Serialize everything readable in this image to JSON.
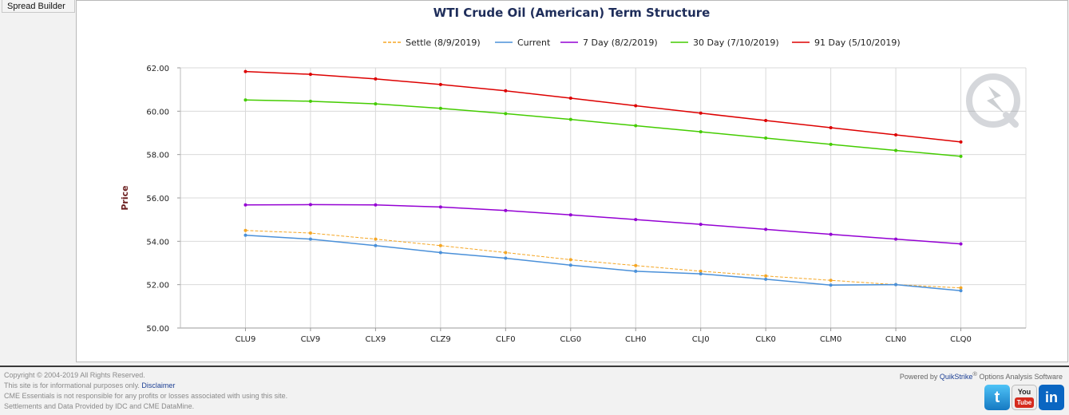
{
  "sidebar": {
    "spread_builder_label": "Spread Builder"
  },
  "chart_data": {
    "type": "line",
    "title": "WTI Crude Oil (American) Term Structure",
    "xlabel": "",
    "ylabel": "Price",
    "ylim": [
      50,
      62
    ],
    "yticks": [
      "50.00",
      "52.00",
      "54.00",
      "56.00",
      "58.00",
      "60.00",
      "62.00"
    ],
    "grid": true,
    "legend_position": "top",
    "categories": [
      "CLU9",
      "CLV9",
      "CLX9",
      "CLZ9",
      "CLF0",
      "CLG0",
      "CLH0",
      "CLJ0",
      "CLK0",
      "CLM0",
      "CLN0",
      "CLQ0"
    ],
    "series": [
      {
        "name": "Settle (8/9/2019)",
        "color": "#f5a623",
        "dashed": true,
        "values": [
          54.5,
          54.38,
          54.1,
          53.8,
          53.48,
          53.15,
          52.88,
          52.62,
          52.4,
          52.2,
          52.0,
          51.85
        ]
      },
      {
        "name": "Current",
        "color": "#4a90d9",
        "dashed": false,
        "values": [
          54.28,
          54.1,
          53.8,
          53.48,
          53.22,
          52.9,
          52.62,
          52.5,
          52.25,
          51.98,
          52.0,
          51.72
        ]
      },
      {
        "name": "7 Day (8/2/2019)",
        "color": "#9400d3",
        "dashed": false,
        "values": [
          55.68,
          55.69,
          55.68,
          55.58,
          55.42,
          55.22,
          55.0,
          54.78,
          54.55,
          54.32,
          54.1,
          53.88
        ]
      },
      {
        "name": "30 Day (7/10/2019)",
        "color": "#44cc00",
        "dashed": false,
        "values": [
          60.52,
          60.46,
          60.34,
          60.13,
          59.89,
          59.62,
          59.33,
          59.05,
          58.76,
          58.47,
          58.19,
          57.92
        ]
      },
      {
        "name": "91 Day (5/10/2019)",
        "color": "#dd0000",
        "dashed": false,
        "values": [
          61.83,
          61.7,
          61.49,
          61.23,
          60.94,
          60.6,
          60.25,
          59.91,
          59.57,
          59.24,
          58.91,
          58.58
        ]
      }
    ]
  },
  "footer": {
    "copyright": "Copyright © 2004-2019 All Rights Reserved.",
    "informational_prefix": "This site is for informational purposes only.",
    "disclaimer_link": "Disclaimer",
    "responsibility": "CME Essentials is not responsible for any profits or losses associated with using this site.",
    "data_provided": "Settlements and Data Provided by IDC and CME DataMine.",
    "powered_prefix": "Powered by ",
    "powered_brand": "QuikStrike",
    "powered_reg": "®",
    "powered_suffix": " Options Analysis Software"
  },
  "social": {
    "twitter_glyph": "t",
    "youtube_you": "You",
    "youtube_tube": "Tube",
    "linkedin_glyph": "in"
  }
}
